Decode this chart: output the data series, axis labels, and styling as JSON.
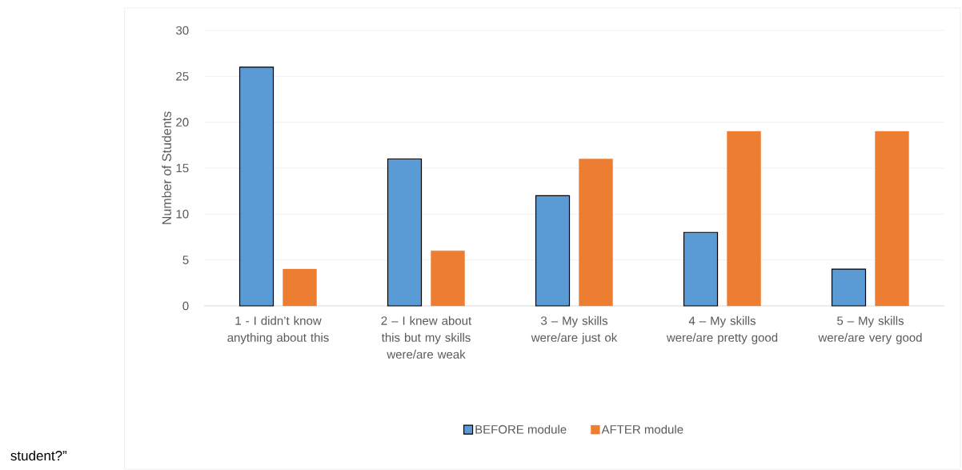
{
  "chart_data": {
    "type": "bar",
    "ylabel": "Number of Students",
    "categories": [
      "1 - I didn’t know anything about this",
      "2 – I knew about this but my skills were/are weak",
      "3 – My skills were/are just ok",
      "4 – My skills were/are pretty good",
      "5 – My skills were/are very good"
    ],
    "series": [
      {
        "name": "BEFORE module",
        "color": "#5b9bd5",
        "values": [
          26,
          16,
          12,
          8,
          4
        ]
      },
      {
        "name": "AFTER module",
        "color": "#ed7d31",
        "values": [
          4,
          6,
          16,
          19,
          19
        ]
      }
    ],
    "ylim": [
      0,
      30
    ],
    "yticks": [
      0,
      5,
      10,
      15,
      20,
      25,
      30
    ],
    "grid": "y",
    "legend": "bottom",
    "annotations": [
      "student?”"
    ]
  }
}
